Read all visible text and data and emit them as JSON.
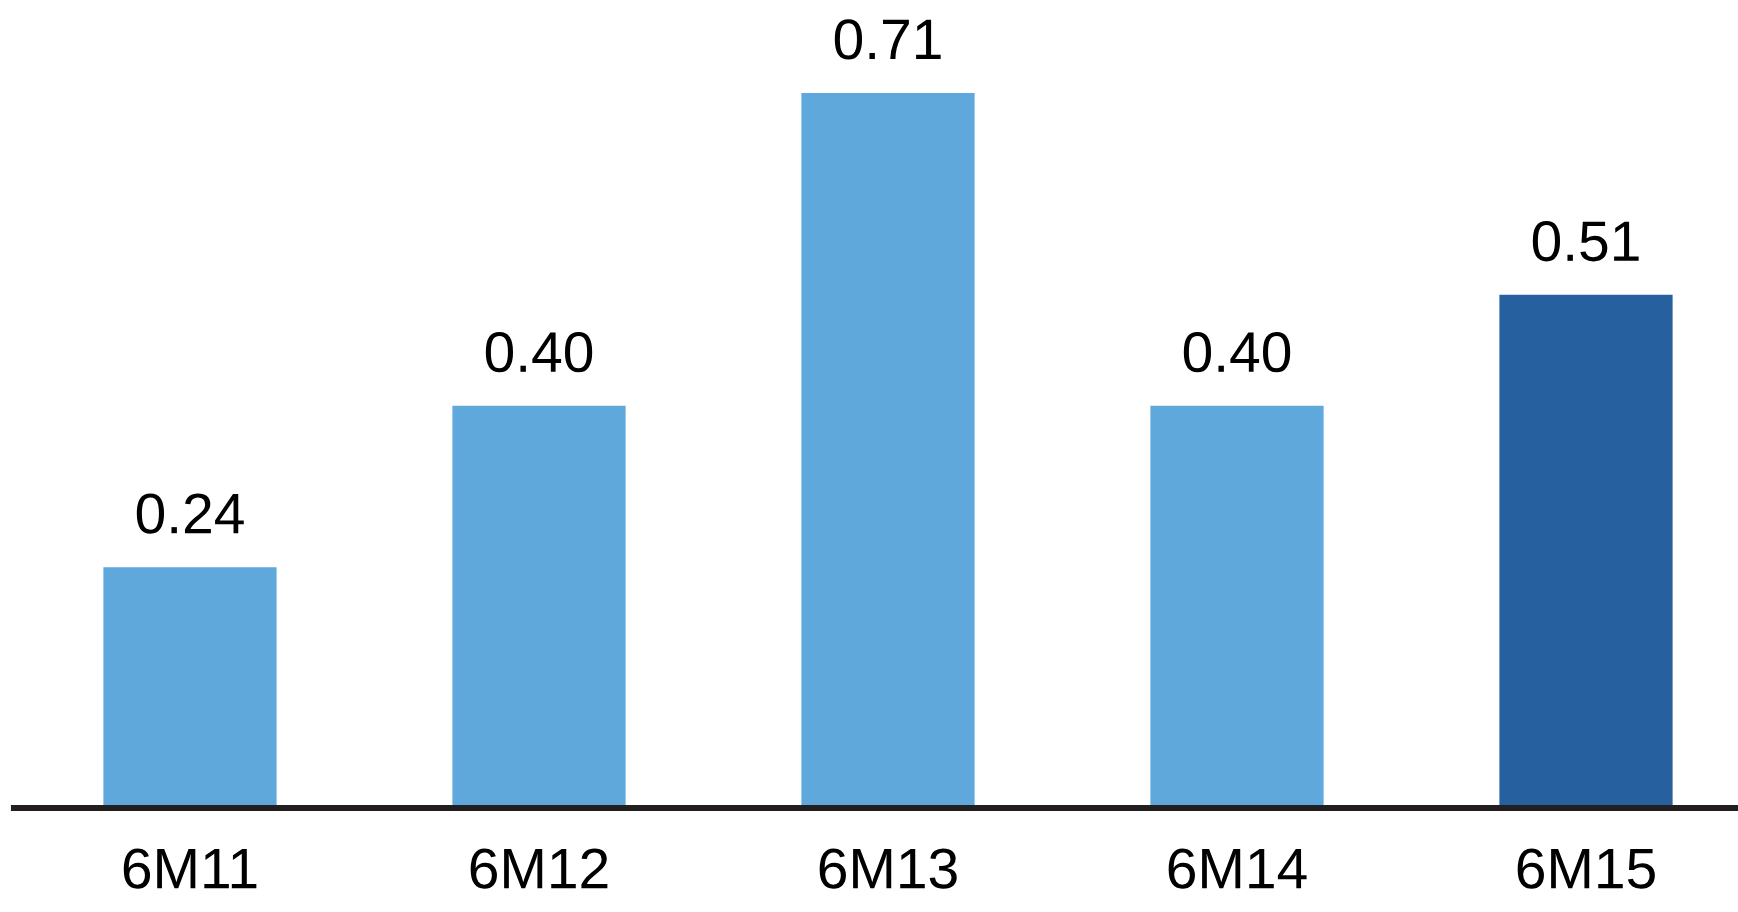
{
  "chart_data": {
    "type": "bar",
    "categories": [
      "6M11",
      "6M12",
      "6M13",
      "6M14",
      "6M15"
    ],
    "values": [
      0.24,
      0.4,
      0.71,
      0.4,
      0.51
    ],
    "colors": [
      "#5fa8dc",
      "#5fa8dc",
      "#5fa8dc",
      "#5fa8dc",
      "#26609e"
    ],
    "value_labels": [
      "0.24",
      "0.40",
      "0.71",
      "0.40",
      "0.51"
    ],
    "tick_labels": "x"
  }
}
